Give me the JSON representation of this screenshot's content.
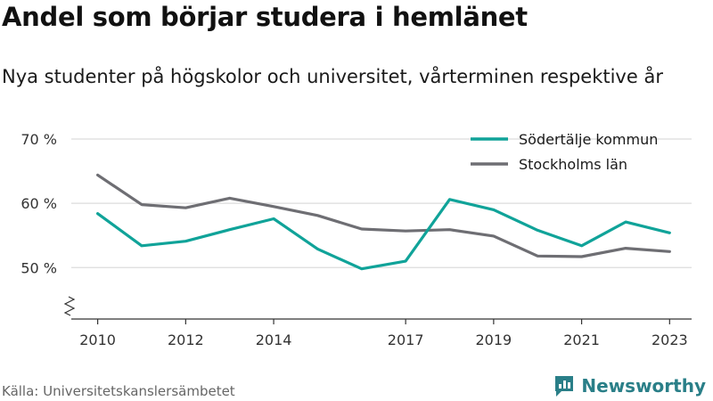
{
  "title": "Andel som börjar studera i hemlänet",
  "subtitle": "Nya studenter på högskolor och universitet, vårterminen respektive år",
  "source": "Källa: Universitetskanslersämbetet",
  "brand": "Newsworthy",
  "colors": {
    "sodertalje": "#10a399",
    "stockholm": "#6e6e73",
    "brand": "#2a7f88"
  },
  "chart_data": {
    "type": "line",
    "x": [
      2010,
      2011,
      2012,
      2013,
      2014,
      2015,
      2016,
      2017,
      2018,
      2019,
      2020,
      2021,
      2022,
      2023
    ],
    "x_tick_labels": [
      "2010",
      "2012",
      "2014",
      "2017",
      "2019",
      "2021",
      "2023"
    ],
    "x_tick_values": [
      2010,
      2012,
      2014,
      2017,
      2019,
      2021,
      2023
    ],
    "y_tick_labels": [
      "70 %",
      "60 %",
      "50 %"
    ],
    "y_tick_values": [
      70,
      60,
      50
    ],
    "ylim": [
      42,
      70
    ],
    "xlim": [
      2009.4,
      2023.5
    ],
    "axis_break": true,
    "grid": true,
    "legend_position": "top-right",
    "series": [
      {
        "name": "Södertälje kommun",
        "color": "#10a399",
        "values": [
          58.4,
          53.4,
          54.1,
          55.9,
          57.6,
          52.9,
          49.8,
          51.0,
          60.6,
          59.0,
          55.8,
          53.4,
          57.1,
          55.4
        ]
      },
      {
        "name": "Stockholms län",
        "color": "#6e6e73",
        "values": [
          64.4,
          59.8,
          59.3,
          60.8,
          59.5,
          58.1,
          56.0,
          55.7,
          55.9,
          54.9,
          51.8,
          51.7,
          53.0,
          52.5
        ]
      }
    ]
  }
}
